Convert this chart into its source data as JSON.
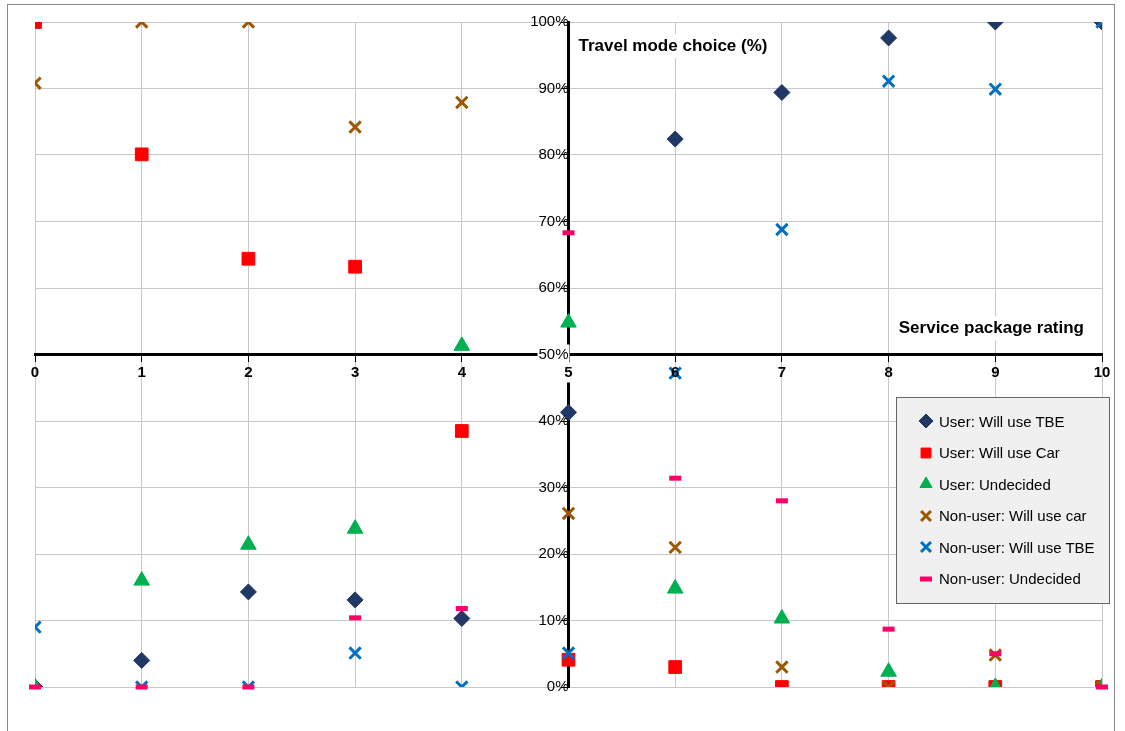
{
  "chart_data": {
    "type": "scatter",
    "xlabel": "Service package rating",
    "ylabel": "Travel mode choice (%)",
    "x": [
      0,
      1,
      2,
      3,
      4,
      5,
      6,
      7,
      8,
      9,
      10
    ],
    "series": [
      {
        "name": "User: Will use TBE",
        "color": "#1f3864",
        "marker": "diamond",
        "values": [
          0,
          4,
          14.3,
          13.1,
          10.3,
          41.3,
          82.4,
          89.4,
          97.6,
          100,
          100
        ]
      },
      {
        "name": "User: Will use Car",
        "color": "#ff0000",
        "marker": "square",
        "values": [
          100,
          80.1,
          64.4,
          63.2,
          38.5,
          4.1,
          3,
          0,
          0,
          0,
          0
        ]
      },
      {
        "name": "User: Undecided",
        "color": "#00b050",
        "marker": "triangle",
        "values": [
          0,
          16,
          21.4,
          23.8,
          51.3,
          54.8,
          14.8,
          10.3,
          2.3,
          0,
          0
        ]
      },
      {
        "name": "Non-user: Will use car",
        "color": "#9c5700",
        "marker": "cross",
        "values": [
          90.8,
          100,
          100,
          84.2,
          87.9,
          26.1,
          21,
          3,
          0,
          4.8,
          0
        ]
      },
      {
        "name": "Non-user: Will use TBE",
        "color": "#0070c0",
        "marker": "cross",
        "values": [
          9,
          0,
          0,
          5.1,
          0,
          5.1,
          47.2,
          68.8,
          91.1,
          89.9,
          100
        ]
      },
      {
        "name": "Non-user: Undecided",
        "color": "#ff0066",
        "values": [
          0,
          0,
          0,
          10.4,
          11.8,
          68.3,
          31.4,
          28,
          8.7,
          5,
          0
        ]
      }
    ],
    "xlim": [
      0,
      10
    ],
    "xticks": [
      0,
      1,
      2,
      3,
      4,
      5,
      6,
      7,
      8,
      9,
      10
    ],
    "ylim": [
      0,
      100
    ],
    "yticks": [
      {
        "value": 0,
        "label": "0%"
      },
      {
        "value": 10,
        "label": "10%"
      },
      {
        "value": 20,
        "label": "20%"
      },
      {
        "value": 30,
        "label": "30%"
      },
      {
        "value": 40,
        "label": "40%"
      },
      {
        "value": 50,
        "label": "50%"
      },
      {
        "value": 60,
        "label": "60%"
      },
      {
        "value": 70,
        "label": "70%"
      },
      {
        "value": 80,
        "label": "80%"
      },
      {
        "value": 90,
        "label": "90%"
      },
      {
        "value": 100,
        "label": "100%"
      }
    ],
    "grid": true,
    "legend": "bottom right"
  }
}
